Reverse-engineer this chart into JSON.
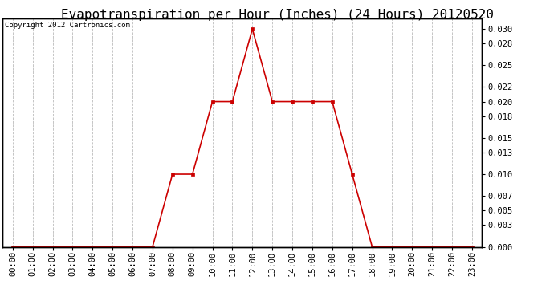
{
  "title": "Evapotranspiration per Hour (Inches) (24 Hours) 20120520",
  "copyright_text": "Copyright 2012 Cartronics.com",
  "hours": [
    "00:00",
    "01:00",
    "02:00",
    "03:00",
    "04:00",
    "05:00",
    "06:00",
    "07:00",
    "08:00",
    "09:00",
    "10:00",
    "11:00",
    "12:00",
    "13:00",
    "14:00",
    "15:00",
    "16:00",
    "17:00",
    "18:00",
    "19:00",
    "20:00",
    "21:00",
    "22:00",
    "23:00"
  ],
  "values": [
    0.0,
    0.0,
    0.0,
    0.0,
    0.0,
    0.0,
    0.0,
    0.0,
    0.01,
    0.01,
    0.02,
    0.02,
    0.03,
    0.02,
    0.02,
    0.02,
    0.02,
    0.01,
    0.0,
    0.0,
    0.0,
    0.0,
    0.0,
    0.0
  ],
  "line_color": "#cc0000",
  "marker_color": "#cc0000",
  "background_color": "#ffffff",
  "plot_bg_color": "#ffffff",
  "grid_color": "#bbbbbb",
  "ylim": [
    0.0,
    0.0315
  ],
  "yticks": [
    0.0,
    0.003,
    0.005,
    0.007,
    0.01,
    0.013,
    0.015,
    0.018,
    0.02,
    0.022,
    0.025,
    0.028,
    0.03
  ],
  "title_fontsize": 11.5,
  "copyright_fontsize": 6.5,
  "tick_fontsize": 7.5,
  "border_color": "#000000"
}
